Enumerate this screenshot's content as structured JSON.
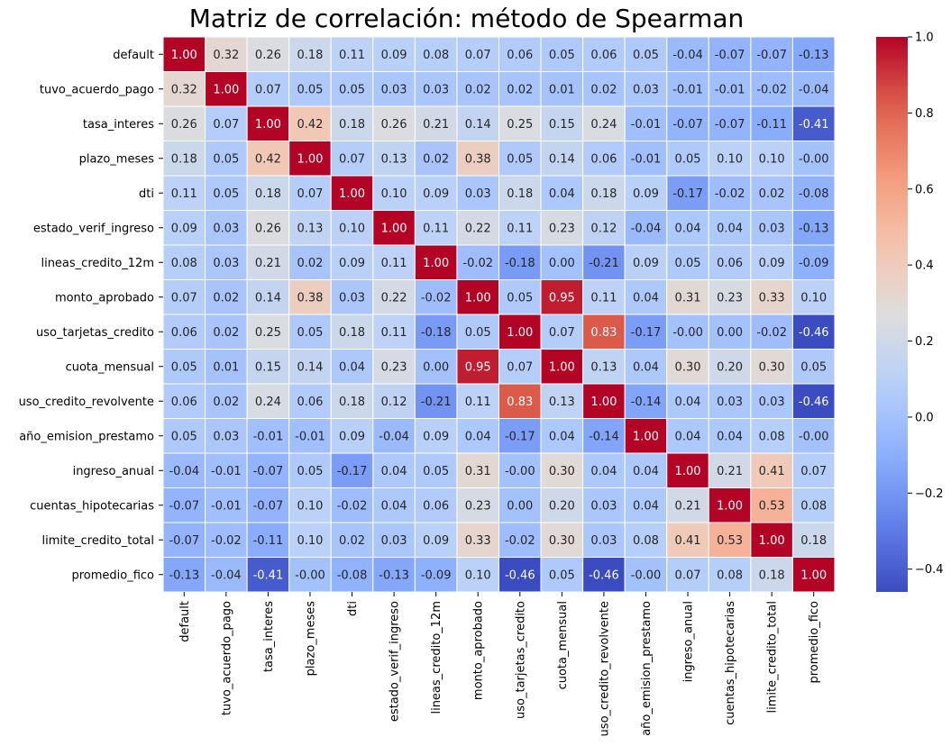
{
  "chart_data": {
    "type": "heatmap",
    "title": "Matriz de correlación: método de Spearman",
    "labels": [
      "default",
      "tuvo_acuerdo_pago",
      "tasa_interes",
      "plazo_meses",
      "dti",
      "estado_verif_ingreso",
      "lineas_credito_12m",
      "monto_aprobado",
      "uso_tarjetas_credito",
      "cuota_mensual",
      "uso_credito_revolvente",
      "año_emision_prestamo",
      "ingreso_anual",
      "cuentas_hipotecarias",
      "limite_credito_total",
      "promedio_fico"
    ],
    "matrix": [
      [
        1.0,
        0.32,
        0.26,
        0.18,
        0.11,
        0.09,
        0.08,
        0.07,
        0.06,
        0.05,
        0.06,
        0.05,
        -0.04,
        -0.07,
        -0.07,
        -0.13
      ],
      [
        0.32,
        1.0,
        0.07,
        0.05,
        0.05,
        0.03,
        0.03,
        0.02,
        0.02,
        0.01,
        0.02,
        0.03,
        -0.01,
        -0.01,
        -0.02,
        -0.04
      ],
      [
        0.26,
        0.07,
        1.0,
        0.42,
        0.18,
        0.26,
        0.21,
        0.14,
        0.25,
        0.15,
        0.24,
        -0.01,
        -0.07,
        -0.07,
        -0.11,
        -0.41
      ],
      [
        0.18,
        0.05,
        0.42,
        1.0,
        0.07,
        0.13,
        0.02,
        0.38,
        0.05,
        0.14,
        0.06,
        -0.01,
        0.05,
        0.1,
        0.1,
        -0.0
      ],
      [
        0.11,
        0.05,
        0.18,
        0.07,
        1.0,
        0.1,
        0.09,
        0.03,
        0.18,
        0.04,
        0.18,
        0.09,
        -0.17,
        -0.02,
        0.02,
        -0.08
      ],
      [
        0.09,
        0.03,
        0.26,
        0.13,
        0.1,
        1.0,
        0.11,
        0.22,
        0.11,
        0.23,
        0.12,
        -0.04,
        0.04,
        0.04,
        0.03,
        -0.13
      ],
      [
        0.08,
        0.03,
        0.21,
        0.02,
        0.09,
        0.11,
        1.0,
        -0.02,
        -0.18,
        0.0,
        -0.21,
        0.09,
        0.05,
        0.06,
        0.09,
        -0.09
      ],
      [
        0.07,
        0.02,
        0.14,
        0.38,
        0.03,
        0.22,
        -0.02,
        1.0,
        0.05,
        0.95,
        0.11,
        0.04,
        0.31,
        0.23,
        0.33,
        0.1
      ],
      [
        0.06,
        0.02,
        0.25,
        0.05,
        0.18,
        0.11,
        -0.18,
        0.05,
        1.0,
        0.07,
        0.83,
        -0.17,
        -0.0,
        0.0,
        -0.02,
        -0.46
      ],
      [
        0.05,
        0.01,
        0.15,
        0.14,
        0.04,
        0.23,
        0.0,
        0.95,
        0.07,
        1.0,
        0.13,
        0.04,
        0.3,
        0.2,
        0.3,
        0.05
      ],
      [
        0.06,
        0.02,
        0.24,
        0.06,
        0.18,
        0.12,
        -0.21,
        0.11,
        0.83,
        0.13,
        1.0,
        -0.14,
        0.04,
        0.03,
        0.03,
        -0.46
      ],
      [
        0.05,
        0.03,
        -0.01,
        -0.01,
        0.09,
        -0.04,
        0.09,
        0.04,
        -0.17,
        0.04,
        -0.14,
        1.0,
        0.04,
        0.04,
        0.08,
        -0.0
      ],
      [
        -0.04,
        -0.01,
        -0.07,
        0.05,
        -0.17,
        0.04,
        0.05,
        0.31,
        -0.0,
        0.3,
        0.04,
        0.04,
        1.0,
        0.21,
        0.41,
        0.07
      ],
      [
        -0.07,
        -0.01,
        -0.07,
        0.1,
        -0.02,
        0.04,
        0.06,
        0.23,
        0.0,
        0.2,
        0.03,
        0.04,
        0.21,
        1.0,
        0.53,
        0.08
      ],
      [
        -0.07,
        -0.02,
        -0.11,
        0.1,
        0.02,
        0.03,
        0.09,
        0.33,
        -0.02,
        0.3,
        0.03,
        0.08,
        0.41,
        0.53,
        1.0,
        0.18
      ],
      [
        -0.13,
        -0.04,
        -0.41,
        -0.0,
        -0.08,
        -0.13,
        -0.09,
        0.1,
        -0.46,
        0.05,
        -0.46,
        -0.0,
        0.07,
        0.08,
        0.18,
        1.0
      ]
    ],
    "value_format": "2 decimals",
    "colormap": "coolwarm",
    "color_range": [
      -0.46,
      1.0
    ],
    "colorbar_ticks": [
      "1.0",
      "0.8",
      "0.6",
      "0.4",
      "0.2",
      "0.0",
      "−0.2",
      "−0.4"
    ],
    "colorbar_tick_values": [
      1.0,
      0.8,
      0.6,
      0.4,
      0.2,
      0.0,
      -0.2,
      -0.4
    ],
    "grid": false,
    "cell_border_color": "#ffffff"
  }
}
